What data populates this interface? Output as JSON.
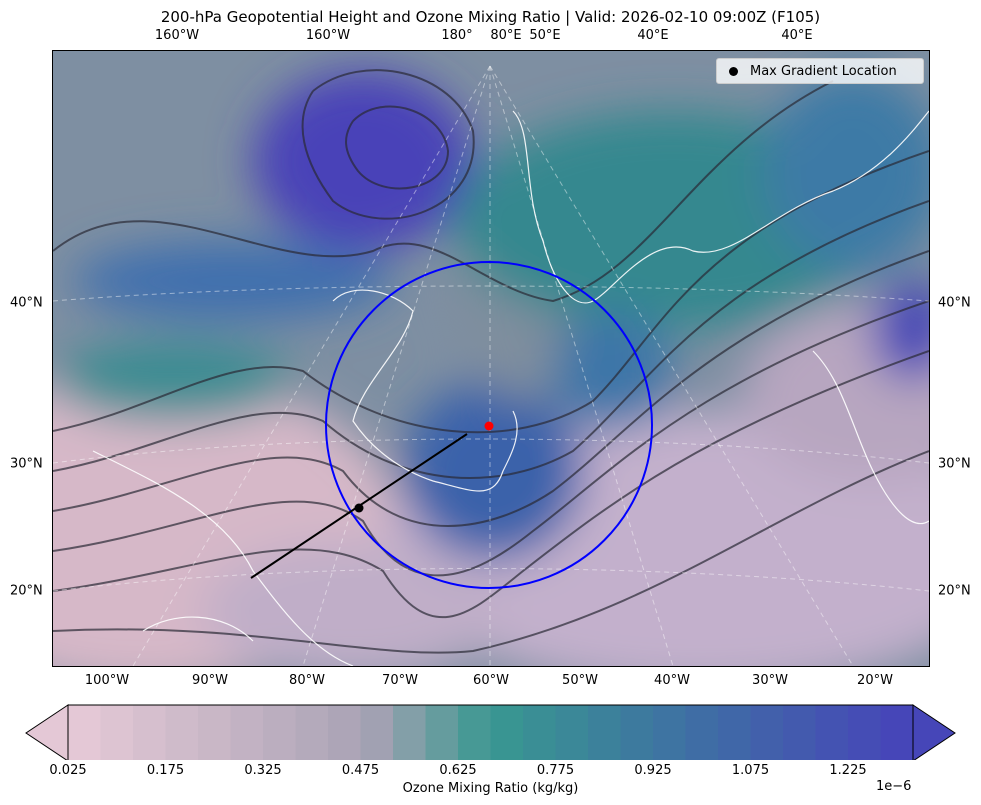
{
  "title": "200-hPa Geopotential Height and Ozone Mixing Ratio   |  Valid: 2026-02-10 09:00Z (F105)",
  "top_lon_labels": [
    "160°W",
    "160°W",
    "180°",
    "80°E",
    "50°E",
    "40°E",
    "40°E"
  ],
  "bottom_lon_labels": [
    "100°W",
    "90°W",
    "80°W",
    "70°W",
    "60°W",
    "50°W",
    "40°W",
    "30°W",
    "20°W"
  ],
  "left_lat_labels": [
    "40°N",
    "30°N",
    "20°N"
  ],
  "right_lat_labels": [
    "40°N",
    "30°N",
    "20°N"
  ],
  "legend": {
    "label": "Max Gradient Location",
    "marker_color": "#000000"
  },
  "annotations": {
    "circle_color": "#0000ff",
    "center_marker_color": "#ff0000",
    "cross_section_line_color": "#000000"
  },
  "colorbar": {
    "label": "Ozone Mixing Ratio (kg/kg)",
    "multiplier": "1e−6",
    "ticks": [
      "0.025",
      "0.175",
      "0.325",
      "0.475",
      "0.625",
      "0.775",
      "0.925",
      "1.075",
      "1.225"
    ],
    "min": 0.025,
    "max": 1.325,
    "step": 0.05,
    "extend": "both",
    "colors": {
      "low": "#e4c8d6",
      "mid_low": "#a8a2b4",
      "mid": "#389890",
      "high": "#4646b8"
    }
  }
}
